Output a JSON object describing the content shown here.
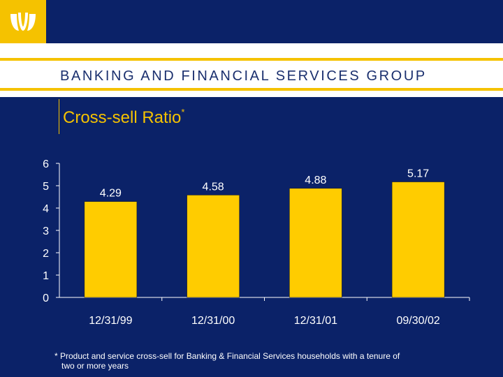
{
  "header": {
    "logo_icon": "bank-logo-icon",
    "group_title": "BANKING AND FINANCIAL SERVICES GROUP"
  },
  "slide": {
    "title": "Cross-sell Ratio",
    "title_mark": "*"
  },
  "chart_data": {
    "type": "bar",
    "categories": [
      "12/31/99",
      "12/31/00",
      "12/31/01",
      "09/30/02"
    ],
    "values": [
      4.29,
      4.58,
      4.88,
      5.17
    ],
    "data_labels": [
      "4.29",
      "4.58",
      "4.88",
      "5.17"
    ],
    "title": "Cross-sell Ratio",
    "xlabel": "",
    "ylabel": "",
    "ylim": [
      0,
      6
    ],
    "yticks": [
      0,
      1,
      2,
      3,
      4,
      5,
      6
    ],
    "grid": false,
    "bar_color": "#ffcc00",
    "text_color": "#ffffff"
  },
  "footnote": {
    "line1": "* Product and service cross-sell for Banking & Financial Services households with a tenure of",
    "line2": "two or more years"
  },
  "colors": {
    "background": "#0b2268",
    "accent": "#f5c200"
  }
}
